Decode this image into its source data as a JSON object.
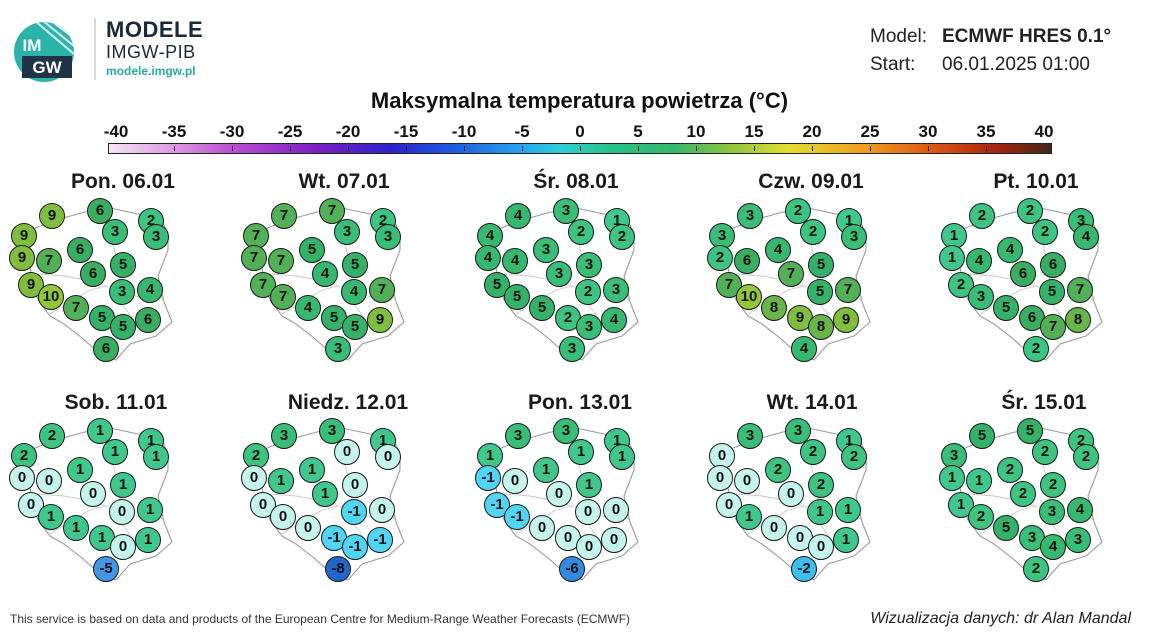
{
  "brand": {
    "logo_text": "IMGW",
    "title": "MODELE",
    "subtitle": "IMGW-PIB",
    "url": "modele.imgw.pl"
  },
  "meta": {
    "model_label": "Model:",
    "model_value": "ECMWF HRES 0.1°",
    "start_label": "Start:",
    "start_value": "06.01.2025 01:00"
  },
  "title": "Maksymalna temperatura powietrza (°C)",
  "scale": {
    "ticks": [
      "-40",
      "-35",
      "-30",
      "-25",
      "-20",
      "-15",
      "-10",
      "-5",
      "0",
      "5",
      "10",
      "15",
      "20",
      "25",
      "30",
      "35",
      "40"
    ]
  },
  "days": [
    {
      "label": "Pon. 06.01",
      "values": [
        9,
        6,
        2,
        9,
        3,
        3,
        6,
        9,
        7,
        5,
        6,
        9,
        10,
        3,
        4,
        7,
        5,
        5,
        6,
        6
      ]
    },
    {
      "label": "Wt. 07.01",
      "values": [
        7,
        7,
        2,
        7,
        3,
        3,
        5,
        7,
        7,
        5,
        4,
        7,
        7,
        4,
        7,
        4,
        5,
        5,
        9,
        3
      ]
    },
    {
      "label": "Śr. 08.01",
      "values": [
        4,
        3,
        1,
        4,
        2,
        2,
        3,
        4,
        4,
        3,
        3,
        5,
        5,
        2,
        3,
        5,
        2,
        3,
        4,
        3
      ]
    },
    {
      "label": "Czw. 09.01",
      "values": [
        3,
        2,
        1,
        3,
        2,
        3,
        4,
        2,
        6,
        5,
        7,
        7,
        10,
        5,
        7,
        8,
        9,
        8,
        9,
        4
      ]
    },
    {
      "label": "Pt. 10.01",
      "values": [
        2,
        2,
        3,
        1,
        2,
        4,
        4,
        1,
        4,
        6,
        6,
        2,
        3,
        5,
        7,
        5,
        6,
        7,
        8,
        2
      ]
    },
    {
      "label": "Sob. 11.01",
      "values": [
        2,
        1,
        1,
        2,
        1,
        1,
        1,
        0,
        0,
        1,
        0,
        0,
        1,
        0,
        1,
        1,
        1,
        0,
        1,
        -5
      ]
    },
    {
      "label": "Niedz. 12.01",
      "values": [
        3,
        3,
        1,
        2,
        0,
        0,
        1,
        0,
        1,
        0,
        1,
        0,
        0,
        -1,
        0,
        0,
        -1,
        -1,
        -1,
        -8
      ]
    },
    {
      "label": "Pon. 13.01",
      "values": [
        3,
        3,
        1,
        1,
        1,
        1,
        1,
        -1,
        0,
        1,
        0,
        -1,
        -1,
        0,
        0,
        0,
        0,
        0,
        0,
        -6
      ]
    },
    {
      "label": "Wt. 14.01",
      "values": [
        3,
        3,
        1,
        0,
        2,
        2,
        2,
        0,
        0,
        2,
        0,
        0,
        1,
        1,
        1,
        0,
        0,
        0,
        1,
        -2
      ]
    },
    {
      "label": "Śr. 15.01",
      "values": [
        5,
        5,
        2,
        3,
        2,
        2,
        2,
        1,
        1,
        2,
        2,
        1,
        2,
        3,
        4,
        5,
        3,
        4,
        3,
        2
      ]
    }
  ],
  "footer": {
    "left": "This service is based on data and products of the European Centre for Medium-Range Weather Forecasts (ECMWF)",
    "right": "Wizualizacja danych: dr Alan Mandal"
  }
}
